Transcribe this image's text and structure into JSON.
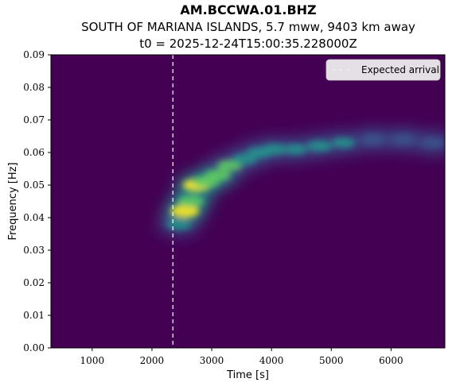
{
  "header": {
    "station": "AM.BCCWA.01.BHZ",
    "event": "SOUTH OF MARIANA ISLANDS, 5.7 mww, 9403 km away",
    "t0": "t0 = 2025-12-24T15:00:35.228000Z"
  },
  "chart_data": {
    "type": "heatmap",
    "title": "AM.BCCWA.01.BHZ",
    "xlabel": "Time [s]",
    "ylabel": "Frequency [Hz]",
    "xlim": [
      310,
      6900
    ],
    "ylim": [
      0.0,
      0.09
    ],
    "x_ticks": [
      1000,
      2000,
      3000,
      4000,
      5000,
      6000
    ],
    "x_tick_labels": [
      "1000",
      "2000",
      "3000",
      "4000",
      "5000",
      "6000"
    ],
    "y_ticks": [
      0.0,
      0.01,
      0.02,
      0.03,
      0.04,
      0.05,
      0.06,
      0.07,
      0.08,
      0.09
    ],
    "y_tick_labels": [
      "0.00",
      "0.01",
      "0.02",
      "0.03",
      "0.04",
      "0.05",
      "0.06",
      "0.07",
      "0.08",
      "0.09"
    ],
    "colormap": "viridis",
    "expected_arrival": {
      "label": "Expected arrival",
      "time": 2350,
      "color": "#ffffff",
      "style": "dashed"
    },
    "legend": {
      "entries": [
        "Expected arrival"
      ],
      "position": "top-right"
    },
    "dispersion_ridge": [
      {
        "t": 2450,
        "f": 0.038,
        "power": 0.55
      },
      {
        "t": 2550,
        "f": 0.042,
        "power": 1.0
      },
      {
        "t": 2650,
        "f": 0.045,
        "power": 0.7
      },
      {
        "t": 2750,
        "f": 0.05,
        "power": 0.95
      },
      {
        "t": 2900,
        "f": 0.051,
        "power": 0.8
      },
      {
        "t": 3100,
        "f": 0.053,
        "power": 0.7
      },
      {
        "t": 3300,
        "f": 0.056,
        "power": 0.65
      },
      {
        "t": 3550,
        "f": 0.058,
        "power": 0.6
      },
      {
        "t": 3800,
        "f": 0.06,
        "power": 0.6
      },
      {
        "t": 4050,
        "f": 0.061,
        "power": 0.55
      },
      {
        "t": 4400,
        "f": 0.061,
        "power": 0.45
      },
      {
        "t": 4800,
        "f": 0.062,
        "power": 0.6
      },
      {
        "t": 5200,
        "f": 0.063,
        "power": 0.45
      },
      {
        "t": 5700,
        "f": 0.064,
        "power": 0.35
      },
      {
        "t": 6200,
        "f": 0.064,
        "power": 0.3
      },
      {
        "t": 6700,
        "f": 0.063,
        "power": 0.25
      }
    ]
  }
}
